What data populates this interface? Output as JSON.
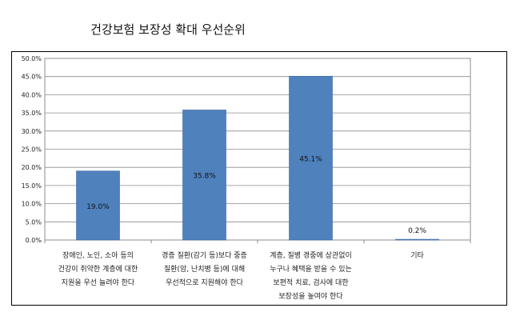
{
  "chart_data": {
    "type": "bar",
    "title": "건강보험 보장성 확대 우선순위",
    "categories": [
      [
        "장애인, 노인, 소아 등의",
        "건강이 취약한 계층에 대한",
        "지원을 우선 늘려야 한다"
      ],
      [
        "경증 질환(감기 등)보다 중증",
        "질환(암, 난치병 등)에 대해",
        "우선적으로 지원해야 한다"
      ],
      [
        "계층, 질병 경중에 상관없이",
        "누구나 혜택을 받을 수 있는",
        "보편적 치료, 검사에 대한",
        "보장성을 높여야 한다"
      ],
      [
        "기타"
      ]
    ],
    "values": [
      19.0,
      35.8,
      45.1,
      0.2
    ],
    "data_labels": [
      "19.0%",
      "35.8%",
      "45.1%",
      "0.2%"
    ],
    "yticks": [
      "0.0%",
      "5.0%",
      "10.0%",
      "15.0%",
      "20.0%",
      "25.0%",
      "30.0%",
      "35.0%",
      "40.0%",
      "45.0%",
      "50.0%"
    ],
    "ylim": [
      0,
      50
    ],
    "grid": true,
    "colors": {
      "bar": "#4f81bd",
      "bar_edge": "#3a679e",
      "grid": "#8c8c8c",
      "axis": "#8c8c8c"
    }
  }
}
